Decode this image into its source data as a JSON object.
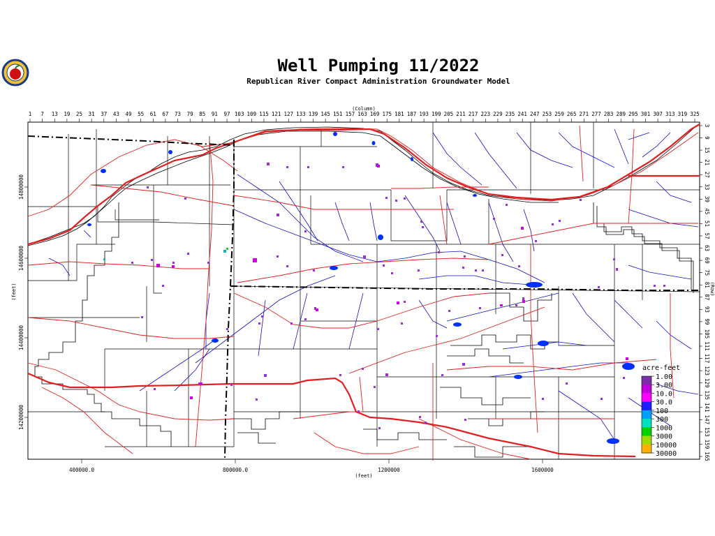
{
  "header": {
    "title": "Well Pumping 11/2022",
    "subtitle": "Republican River Compact Administration Groundwater Model"
  },
  "axes": {
    "column_label": "(Column)",
    "row_label": "(Row)",
    "x_feet_label": "(feet)",
    "y_feet_label": "(feet)",
    "column_ticks": [
      "1",
      "7",
      "13",
      "19",
      "25",
      "31",
      "37",
      "43",
      "49",
      "55",
      "61",
      "67",
      "73",
      "79",
      "85",
      "91",
      "97",
      "103",
      "109",
      "115",
      "121",
      "127",
      "133",
      "139",
      "145",
      "151",
      "157",
      "163",
      "169",
      "175",
      "181",
      "187",
      "193",
      "199",
      "205",
      "211",
      "217",
      "223",
      "229",
      "235",
      "241",
      "247",
      "253",
      "259",
      "265",
      "271",
      "277",
      "283",
      "289",
      "295",
      "301",
      "307",
      "313",
      "319",
      "325"
    ],
    "row_ticks": [
      "3",
      "9",
      "15",
      "21",
      "27",
      "33",
      "39",
      "45",
      "51",
      "57",
      "63",
      "69",
      "75",
      "81",
      "87",
      "93",
      "99",
      "105",
      "111",
      "117",
      "123",
      "129",
      "135",
      "141",
      "147",
      "153",
      "159",
      "165"
    ],
    "x_feet_ticks": [
      "400000.0",
      "800000.0",
      "1200000",
      "1600000"
    ],
    "y_feet_ticks": [
      "14800000",
      "14600000",
      "14400000",
      "14200000"
    ]
  },
  "legend": {
    "title": "acre-feet",
    "labels": [
      "1.00",
      "3.00",
      "10.0",
      "30.0",
      "100",
      "300",
      "1000",
      "3000",
      "10000",
      "30000"
    ],
    "colors": [
      "#7b2ea8",
      "#c000d8",
      "#ff00ff",
      "#2020ff",
      "#00a0ff",
      "#00e0c0",
      "#00d000",
      "#a0d800",
      "#ffb000",
      "#ff6000"
    ]
  },
  "colors": {
    "road": "#e02020",
    "stream": "#1010c0",
    "state_line": "#000000",
    "pumping_low": "#9b30d0",
    "pumping_mid": "#d000e0",
    "pond": "#0030ff"
  }
}
